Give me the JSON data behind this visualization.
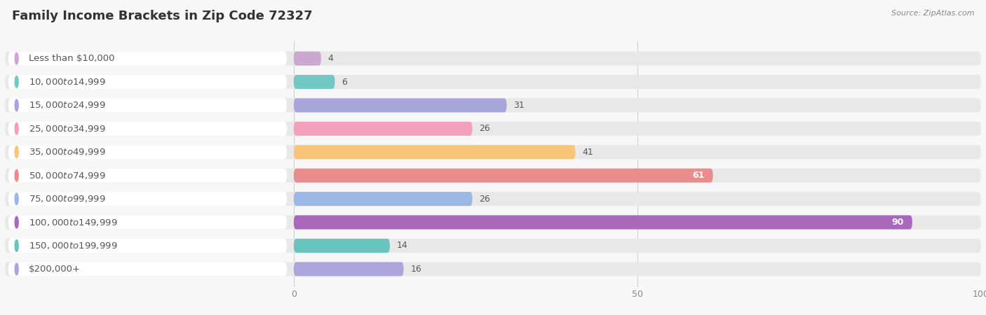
{
  "title": "Family Income Brackets in Zip Code 72327",
  "source": "Source: ZipAtlas.com",
  "categories": [
    "Less than $10,000",
    "$10,000 to $14,999",
    "$15,000 to $24,999",
    "$25,000 to $34,999",
    "$35,000 to $49,999",
    "$50,000 to $74,999",
    "$75,000 to $99,999",
    "$100,000 to $149,999",
    "$150,000 to $199,999",
    "$200,000+"
  ],
  "values": [
    4,
    6,
    31,
    26,
    41,
    61,
    26,
    90,
    14,
    16
  ],
  "colors": [
    "#cca8d0",
    "#72c8c4",
    "#a8a4dc",
    "#f4a0bc",
    "#f8c478",
    "#e88c8c",
    "#9cb8e4",
    "#aa68bc",
    "#68c4bc",
    "#aca4dc"
  ],
  "xlim": [
    0,
    100
  ],
  "fig_bg": "#f7f7f7",
  "bar_bg": "#e8e8e8",
  "label_bg": "#ffffff",
  "title_fontsize": 13,
  "label_fontsize": 9.5,
  "value_fontsize": 9,
  "title_color": "#333333",
  "label_color": "#555555",
  "value_color_dark": "#555555",
  "value_color_light": "#ffffff",
  "source_color": "#888888"
}
